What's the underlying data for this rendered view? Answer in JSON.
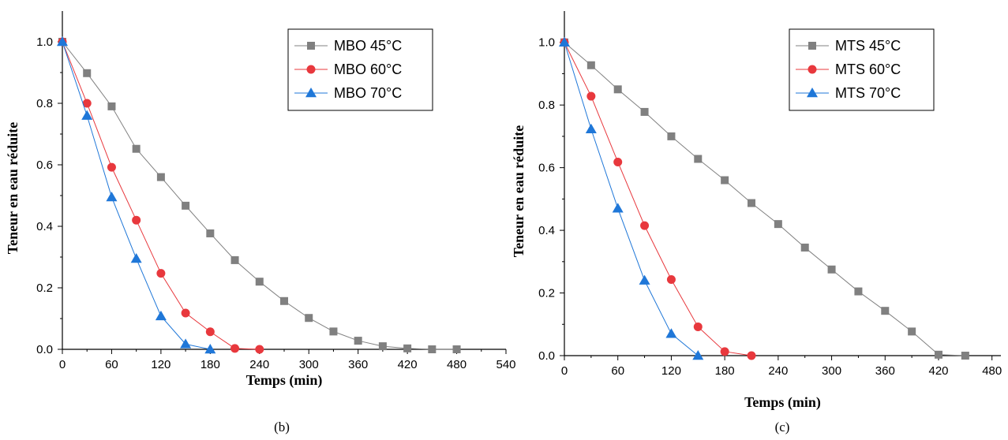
{
  "chart_data": [
    {
      "type": "line",
      "panel_label": "(b)",
      "xlabel": "Temps (min)",
      "ylabel": "Teneur en eau réduite",
      "xlim": [
        0,
        540
      ],
      "ylim": [
        0,
        1.1
      ],
      "xticks": [
        0,
        60,
        120,
        180,
        240,
        300,
        360,
        420,
        480,
        540
      ],
      "yticks": [
        0.0,
        0.2,
        0.4,
        0.6,
        0.8,
        1.0
      ],
      "ytick_labels": [
        "0.0",
        "0.2",
        "0.4",
        "0.6",
        "0.8",
        "1.0"
      ],
      "legend_position": "top-right",
      "grid": false,
      "series": [
        {
          "name": "MBO 45°C",
          "marker": "square",
          "color": "#808080",
          "x": [
            0,
            30,
            60,
            90,
            120,
            150,
            180,
            210,
            240,
            270,
            300,
            330,
            360,
            390,
            420,
            450,
            480
          ],
          "y": [
            1.0,
            0.898,
            0.79,
            0.652,
            0.56,
            0.467,
            0.377,
            0.29,
            0.22,
            0.157,
            0.102,
            0.058,
            0.028,
            0.01,
            0.003,
            0.0,
            0.0
          ]
        },
        {
          "name": "MBO 60°C",
          "marker": "circle",
          "color": "#e8383d",
          "x": [
            0,
            30,
            60,
            90,
            120,
            150,
            180,
            210,
            240
          ],
          "y": [
            1.0,
            0.8,
            0.592,
            0.42,
            0.247,
            0.118,
            0.057,
            0.003,
            0.0
          ]
        },
        {
          "name": "MBO 70°C",
          "marker": "triangle",
          "color": "#1f77d8",
          "x": [
            0,
            30,
            60,
            90,
            120,
            150,
            180
          ],
          "y": [
            1.0,
            0.76,
            0.495,
            0.295,
            0.108,
            0.017,
            0.0
          ]
        }
      ]
    },
    {
      "type": "line",
      "panel_label": "(c)",
      "xlabel": "Temps (min)",
      "ylabel": "Teneur en eau réduite",
      "xlim": [
        0,
        490
      ],
      "ylim": [
        0,
        1.1
      ],
      "xticks": [
        0,
        60,
        120,
        180,
        240,
        300,
        360,
        420,
        480
      ],
      "yticks": [
        0.0,
        0.2,
        0.4,
        0.6,
        0.8,
        1.0
      ],
      "ytick_labels": [
        "0.0",
        "0.2",
        "0.4",
        "0.6",
        "0.8",
        "1.0"
      ],
      "legend_position": "top-right",
      "grid": false,
      "series": [
        {
          "name": "MTS 45°C",
          "marker": "square",
          "color": "#808080",
          "x": [
            0,
            30,
            60,
            90,
            120,
            150,
            180,
            210,
            240,
            270,
            300,
            330,
            360,
            390,
            420,
            450
          ],
          "y": [
            1.0,
            0.927,
            0.85,
            0.778,
            0.7,
            0.628,
            0.56,
            0.487,
            0.42,
            0.345,
            0.275,
            0.205,
            0.143,
            0.077,
            0.003,
            0.0
          ]
        },
        {
          "name": "MTS 60°C",
          "marker": "circle",
          "color": "#e8383d",
          "x": [
            0,
            30,
            60,
            90,
            120,
            150,
            180,
            210
          ],
          "y": [
            1.0,
            0.828,
            0.618,
            0.415,
            0.243,
            0.092,
            0.013,
            0.0
          ]
        },
        {
          "name": "MTS 70°C",
          "marker": "triangle",
          "color": "#1f77d8",
          "x": [
            0,
            30,
            60,
            90,
            120,
            150
          ],
          "y": [
            1.0,
            0.723,
            0.47,
            0.24,
            0.07,
            0.0
          ]
        }
      ]
    }
  ]
}
